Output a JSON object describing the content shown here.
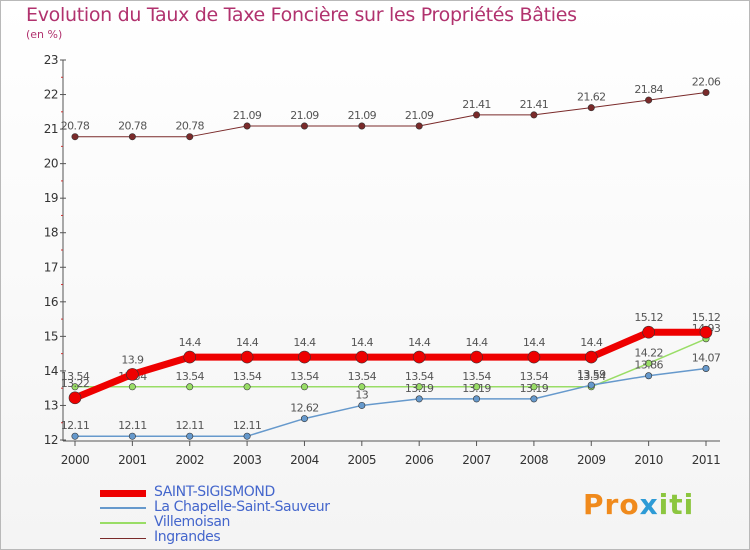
{
  "title": "Evolution du Taux de Taxe Foncière sur les Propriétés Bâties",
  "unit_label": "(en %)",
  "logo": {
    "part1": "Pro",
    "part2": "x",
    "part3": "iti"
  },
  "chart_data": {
    "type": "line",
    "x": [
      "2000",
      "2001",
      "2002",
      "2003",
      "2004",
      "2005",
      "2006",
      "2007",
      "2008",
      "2009",
      "2010",
      "2011"
    ],
    "ylim": [
      12,
      23
    ],
    "yticks": [
      "12",
      "13",
      "14",
      "15",
      "16",
      "17",
      "18",
      "19",
      "20",
      "21",
      "22",
      "23"
    ],
    "grid": false,
    "legend_position": "bottom-left",
    "series": [
      {
        "name": "Ingrandes",
        "color": "#7a2a2a",
        "width": 1,
        "values": [
          20.78,
          20.78,
          20.78,
          21.09,
          21.09,
          21.09,
          21.09,
          21.41,
          21.41,
          21.62,
          21.84,
          22.06
        ],
        "labels": [
          "20.78",
          "20.78",
          "20.78",
          "21.09",
          "21.09",
          "21.09",
          "21.09",
          "21.41",
          "21.41",
          "21.62",
          "21.84",
          "22.06"
        ]
      },
      {
        "name": "Villemoisan",
        "color": "#99dd66",
        "width": 1.5,
        "values": [
          13.54,
          13.54,
          13.54,
          13.54,
          13.54,
          13.54,
          13.54,
          13.54,
          13.54,
          13.54,
          14.22,
          14.93
        ],
        "labels": [
          "13.54",
          "13.54",
          "13.54",
          "13.54",
          "13.54",
          "13.54",
          "13.54",
          "13.54",
          "13.54",
          "13.54",
          "14.22",
          "14.93"
        ]
      },
      {
        "name": "La Chapelle-Saint-Sauveur",
        "color": "#6699cc",
        "width": 1.5,
        "values": [
          12.11,
          12.11,
          12.11,
          12.11,
          12.62,
          13,
          13.19,
          13.19,
          13.19,
          13.59,
          13.86,
          14.07
        ],
        "labels": [
          "12.11",
          "12.11",
          "12.11",
          "12.11",
          "12.62",
          "13",
          "13.19",
          "13.19",
          "13.19",
          "13.59",
          "13.86",
          "14.07"
        ]
      },
      {
        "name": "SAINT-SIGISMOND",
        "color": "#ee0000",
        "width": 7,
        "values": [
          13.22,
          13.9,
          14.4,
          14.4,
          14.4,
          14.4,
          14.4,
          14.4,
          14.4,
          14.4,
          15.12,
          15.12
        ],
        "labels": [
          "13.22",
          "13.9",
          "14.4",
          "14.4",
          "14.4",
          "14.4",
          "14.4",
          "14.4",
          "14.4",
          "14.4",
          "15.12",
          "15.12"
        ]
      }
    ],
    "legend": [
      {
        "name": "SAINT-SIGISMOND",
        "color": "#ee0000",
        "width": 7
      },
      {
        "name": "La Chapelle-Saint-Sauveur",
        "color": "#6699cc",
        "width": 1.5
      },
      {
        "name": "Villemoisan",
        "color": "#99dd66",
        "width": 1.5
      },
      {
        "name": "Ingrandes",
        "color": "#7a2a2a",
        "width": 1
      }
    ]
  }
}
